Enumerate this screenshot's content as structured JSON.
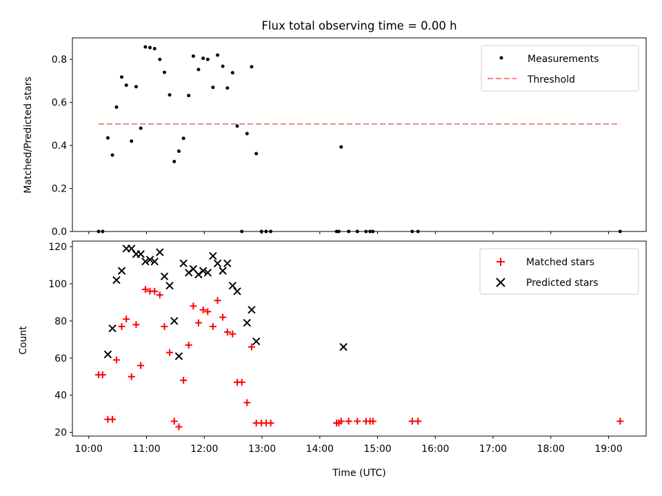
{
  "chart_data": {
    "title": "Flux total observing time = 0.00 h",
    "xlabel": "Time (UTC)",
    "x_unit": "hours UTC",
    "x_ticks": [
      "10:00",
      "11:00",
      "12:00",
      "13:00",
      "14:00",
      "15:00",
      "16:00",
      "17:00",
      "18:00",
      "19:00"
    ],
    "xlim": [
      "09:43",
      "19:39"
    ],
    "panels": [
      {
        "type": "scatter",
        "ylabel": "Matched/Predicted stars",
        "ylim": [
          0,
          0.9
        ],
        "y_ticks": [
          "0.0",
          "0.2",
          "0.4",
          "0.6",
          "0.8"
        ],
        "legend": {
          "placement": "top-right"
        },
        "series": [
          {
            "name": "Measurements",
            "marker": "dot",
            "color": "#000000",
            "x": [
              10.17,
              10.24,
              10.33,
              10.41,
              10.48,
              10.57,
              10.65,
              10.74,
              10.82,
              10.9,
              10.98,
              11.06,
              11.14,
              11.23,
              11.31,
              11.4,
              11.48,
              11.56,
              11.64,
              11.73,
              11.81,
              11.9,
              11.98,
              12.06,
              12.15,
              12.23,
              12.32,
              12.4,
              12.49,
              12.57,
              12.65,
              12.74,
              12.82,
              12.9,
              12.99,
              13.07,
              13.15,
              14.29,
              14.33,
              14.37,
              14.5,
              14.65,
              14.8,
              14.87,
              14.92,
              15.6,
              15.7,
              19.2
            ],
            "y": [
              0,
              0,
              0.435,
              0.355,
              0.578,
              0.718,
              0.68,
              0.42,
              0.673,
              0.48,
              0.858,
              0.855,
              0.85,
              0.8,
              0.74,
              0.635,
              0.325,
              0.373,
              0.433,
              0.632,
              0.815,
              0.753,
              0.805,
              0.8,
              0.67,
              0.82,
              0.768,
              0.667,
              0.738,
              0.49,
              0,
              0.455,
              0.766,
              0.362,
              0,
              0,
              0,
              0,
              0,
              0.393,
              0,
              0,
              0,
              0,
              0,
              0,
              0,
              0
            ]
          },
          {
            "name": "Threshold",
            "marker": "dashed-line",
            "color": "#ff7f7f",
            "x": [
              10.17,
              19.2
            ],
            "y": [
              0.5,
              0.5
            ]
          }
        ]
      },
      {
        "type": "scatter",
        "ylabel": "Count",
        "ylim": [
          18,
          123
        ],
        "y_ticks": [
          "20",
          "40",
          "60",
          "80",
          "100",
          "120"
        ],
        "legend": {
          "placement": "top-right"
        },
        "series": [
          {
            "name": "Matched stars",
            "marker": "plus",
            "color": "#ff0000",
            "x": [
              10.17,
              10.24,
              10.33,
              10.41,
              10.48,
              10.57,
              10.65,
              10.74,
              10.82,
              10.9,
              10.98,
              11.06,
              11.14,
              11.23,
              11.31,
              11.4,
              11.48,
              11.56,
              11.64,
              11.73,
              11.81,
              11.9,
              11.98,
              12.06,
              12.15,
              12.23,
              12.32,
              12.4,
              12.49,
              12.57,
              12.65,
              12.74,
              12.82,
              12.9,
              12.99,
              13.07,
              13.15,
              14.29,
              14.33,
              14.37,
              14.5,
              14.65,
              14.8,
              14.87,
              14.92,
              15.6,
              15.7,
              19.2
            ],
            "y": [
              51,
              51,
              27,
              27,
              59,
              77,
              81,
              50,
              78,
              56,
              97,
              96,
              96,
              94,
              77,
              63,
              26,
              23,
              48,
              67,
              88,
              79,
              86,
              85,
              77,
              91,
              82,
              74,
              73,
              47,
              47,
              36,
              66,
              25,
              25,
              25,
              25,
              25,
              25,
              26,
              26,
              26,
              26,
              26,
              26,
              26,
              26,
              26
            ]
          },
          {
            "name": "Predicted stars",
            "marker": "x",
            "color": "#000000",
            "x": [
              10.33,
              10.41,
              10.48,
              10.57,
              10.65,
              10.74,
              10.82,
              10.9,
              10.98,
              11.06,
              11.14,
              11.23,
              11.31,
              11.4,
              11.48,
              11.56,
              11.64,
              11.73,
              11.81,
              11.9,
              11.98,
              12.06,
              12.15,
              12.23,
              12.32,
              12.4,
              12.49,
              12.57,
              12.74,
              12.82,
              12.9,
              14.41
            ],
            "y": [
              62,
              76,
              102,
              107,
              119,
              119,
              116,
              116,
              112,
              113,
              112,
              117,
              104,
              99,
              80,
              61,
              111,
              106,
              108,
              105,
              107,
              106,
              115,
              111,
              107,
              111,
              99,
              96,
              79,
              86,
              69,
              66
            ]
          }
        ]
      }
    ]
  }
}
